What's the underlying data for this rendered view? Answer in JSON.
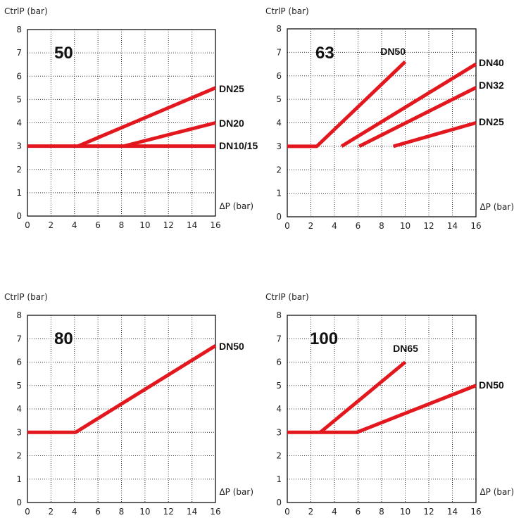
{
  "chart_data": [
    {
      "type": "line",
      "title": "50",
      "ylabel": "CtrlP (bar)",
      "xlabel": "ΔP (bar)",
      "xlim": [
        0,
        16
      ],
      "ylim": [
        0,
        8
      ],
      "xticks": [
        0,
        2,
        4,
        6,
        8,
        10,
        12,
        14,
        16
      ],
      "yticks": [
        0,
        1,
        2,
        3,
        4,
        5,
        6,
        7,
        8
      ],
      "grid": true,
      "series": [
        {
          "name": "DN10/15",
          "x": [
            0,
            16
          ],
          "y": [
            3,
            3
          ]
        },
        {
          "name": "DN20",
          "x": [
            8.2,
            16
          ],
          "y": [
            3,
            4
          ]
        },
        {
          "name": "DN25",
          "x": [
            4.3,
            16
          ],
          "y": [
            3,
            5.5
          ]
        }
      ],
      "line_color": "#e3171e"
    },
    {
      "type": "line",
      "title": "63",
      "ylabel": "CtrlP (bar)",
      "xlabel": "ΔP (bar)",
      "xlim": [
        0,
        16
      ],
      "ylim": [
        0,
        8
      ],
      "xticks": [
        0,
        2,
        4,
        6,
        8,
        10,
        12,
        14,
        16
      ],
      "yticks": [
        0,
        1,
        2,
        3,
        4,
        5,
        6,
        7,
        8
      ],
      "grid": true,
      "series": [
        {
          "name": "DN50",
          "x": [
            0,
            2.5,
            10
          ],
          "y": [
            3,
            3,
            6.6
          ]
        },
        {
          "name": "DN40",
          "x": [
            4.6,
            16
          ],
          "y": [
            3,
            6.5
          ]
        },
        {
          "name": "DN32",
          "x": [
            6.1,
            16
          ],
          "y": [
            3,
            5.5
          ]
        },
        {
          "name": "DN25",
          "x": [
            9,
            16
          ],
          "y": [
            3,
            4
          ]
        }
      ],
      "line_color": "#e3171e"
    },
    {
      "type": "line",
      "title": "80",
      "ylabel": "CtrlP (bar)",
      "xlabel": "ΔP (bar)",
      "xlim": [
        0,
        16
      ],
      "ylim": [
        0,
        8
      ],
      "xticks": [
        0,
        2,
        4,
        6,
        8,
        10,
        12,
        14,
        16
      ],
      "yticks": [
        0,
        1,
        2,
        3,
        4,
        5,
        6,
        7,
        8
      ],
      "grid": true,
      "series": [
        {
          "name": "DN50",
          "x": [
            0,
            4.1,
            16
          ],
          "y": [
            3,
            3,
            6.7
          ]
        }
      ],
      "line_color": "#e3171e"
    },
    {
      "type": "line",
      "title": "100",
      "ylabel": "CtrlP (bar)",
      "xlabel": "ΔP (bar)",
      "xlim": [
        0,
        16
      ],
      "ylim": [
        0,
        8
      ],
      "xticks": [
        0,
        2,
        4,
        6,
        8,
        10,
        12,
        14,
        16
      ],
      "yticks": [
        0,
        1,
        2,
        3,
        4,
        5,
        6,
        7,
        8
      ],
      "grid": true,
      "series": [
        {
          "name": "DN65",
          "x": [
            2.8,
            10
          ],
          "y": [
            3,
            6
          ]
        },
        {
          "name": "DN50",
          "x": [
            0,
            5.9,
            16
          ],
          "y": [
            3,
            3,
            5
          ]
        }
      ],
      "line_color": "#e3171e"
    }
  ]
}
